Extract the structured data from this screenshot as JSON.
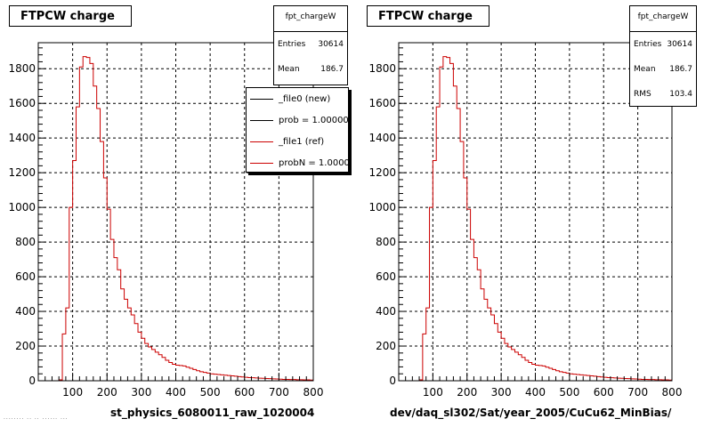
{
  "colors": {
    "new": "#000000",
    "ref": "#cc0000",
    "grid": "#000000"
  },
  "footnote": "........ .. .. ...... ...",
  "legend": {
    "entries": [
      {
        "label": "_file0 (new)",
        "color": "#000000"
      },
      {
        "label": "prob = 1.000000",
        "color": "#000000"
      },
      {
        "label": "_file1 (ref)",
        "color": "#cc0000"
      },
      {
        "label": "probN = 1.000000",
        "color": "#cc0000"
      }
    ]
  },
  "chart_data": [
    {
      "type": "histogram",
      "title": "FTPCW charge",
      "xlabel": "st_physics_6080011_raw_1020004",
      "ylabel": "",
      "xlim": [
        0,
        800
      ],
      "ylim": [
        0,
        1950
      ],
      "xticks": [
        100,
        200,
        300,
        400,
        500,
        600,
        700,
        800
      ],
      "yticks": [
        0,
        200,
        400,
        600,
        800,
        1000,
        1200,
        1400,
        1600,
        1800
      ],
      "grid": true,
      "legend_position": "top-right",
      "stats": {
        "name": "fpt_chargeW",
        "rows": [
          {
            "label": "Entries",
            "value": "30614"
          },
          {
            "label": "Mean",
            "value": "186.7"
          }
        ]
      },
      "bins": {
        "start": 0,
        "width": 10
      },
      "series": [
        {
          "name": "_file1 (ref)",
          "color": "#cc0000",
          "values": [
            0,
            0,
            0,
            0,
            0,
            0,
            5,
            270,
            420,
            1000,
            1270,
            1580,
            1810,
            1870,
            1865,
            1830,
            1700,
            1570,
            1380,
            1170,
            990,
            815,
            710,
            640,
            530,
            470,
            420,
            380,
            330,
            280,
            245,
            215,
            195,
            180,
            165,
            150,
            135,
            118,
            105,
            95,
            90,
            88,
            85,
            78,
            72,
            65,
            58,
            52,
            48,
            44,
            40,
            38,
            36,
            34,
            32,
            30,
            28,
            26,
            24,
            22,
            20,
            18,
            17,
            16,
            15,
            14,
            13,
            12,
            11,
            10,
            9,
            8,
            8,
            7,
            7,
            6,
            6,
            5,
            5,
            4
          ]
        }
      ]
    },
    {
      "type": "histogram",
      "title": "FTPCW charge",
      "xlabel": "dev/daq_sl302/Sat/year_2005/CuCu62_MinBias/",
      "ylabel": "",
      "xlim": [
        0,
        800
      ],
      "ylim": [
        0,
        1950
      ],
      "xticks": [
        100,
        200,
        300,
        400,
        500,
        600,
        700,
        800
      ],
      "yticks": [
        0,
        200,
        400,
        600,
        800,
        1000,
        1200,
        1400,
        1600,
        1800
      ],
      "grid": true,
      "stats": {
        "name": "fpt_chargeW",
        "rows": [
          {
            "label": "Entries",
            "value": "30614"
          },
          {
            "label": "Mean",
            "value": "186.7"
          },
          {
            "label": "RMS",
            "value": "103.4"
          }
        ]
      },
      "bins": {
        "start": 0,
        "width": 10
      },
      "series": [
        {
          "color": "#cc0000",
          "values": [
            0,
            0,
            0,
            0,
            0,
            0,
            5,
            270,
            420,
            1000,
            1270,
            1580,
            1810,
            1870,
            1865,
            1830,
            1700,
            1570,
            1380,
            1170,
            990,
            815,
            710,
            640,
            530,
            470,
            420,
            380,
            330,
            280,
            245,
            215,
            195,
            180,
            165,
            150,
            135,
            118,
            105,
            95,
            90,
            88,
            85,
            78,
            72,
            65,
            58,
            52,
            48,
            44,
            40,
            38,
            36,
            34,
            32,
            30,
            28,
            26,
            24,
            22,
            20,
            18,
            17,
            16,
            15,
            14,
            13,
            12,
            11,
            10,
            9,
            8,
            8,
            7,
            7,
            6,
            6,
            5,
            5,
            4
          ]
        }
      ]
    }
  ]
}
